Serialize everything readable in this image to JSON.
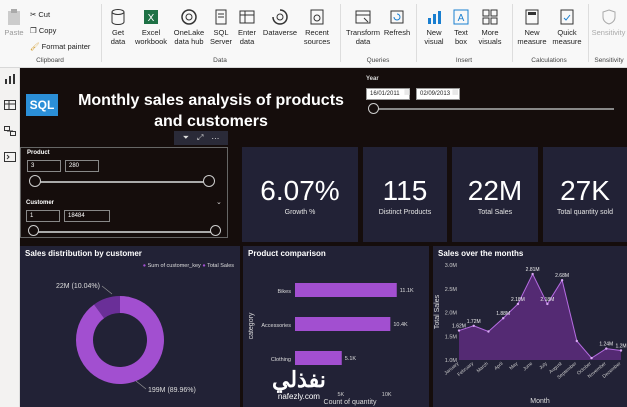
{
  "ribbon": {
    "clipboard": {
      "paste": "Paste",
      "cut": "Cut",
      "copy": "Copy",
      "format_painter": "Format painter",
      "group": "Clipboard"
    },
    "data": {
      "get_data": "Get data",
      "excel": "Excel workbook",
      "onelake": "OneLake data hub",
      "sql": "SQL Server",
      "enter": "Enter data",
      "dataverse": "Dataverse",
      "recent": "Recent sources",
      "group": "Data"
    },
    "queries": {
      "transform": "Transform data",
      "refresh": "Refresh",
      "group": "Queries"
    },
    "insert": {
      "new_visual": "New visual",
      "text_box": "Text box",
      "more_visuals": "More visuals",
      "group": "Insert"
    },
    "calculations": {
      "new_measure": "New measure",
      "quick_measure": "Quick measure",
      "group": "Calculations"
    },
    "sensitivity": {
      "label": "Sensitivity",
      "group": "Sensitivity"
    }
  },
  "report": {
    "logo": "SQL",
    "title_line1": "Monthly sales analysis of products",
    "title_line2": "and customers",
    "year_slicer": {
      "label": "Year",
      "from": "16/01/2011",
      "to": "02/09/2013"
    },
    "product_slicer": {
      "label": "Product",
      "min": "3",
      "max": "280"
    },
    "customer_slicer": {
      "label": "Customer",
      "min": "1",
      "max": "18484"
    },
    "kpis": [
      {
        "value": "6.07%",
        "label": "Growth %"
      },
      {
        "value": "115",
        "label": "Distinct Products"
      },
      {
        "value": "22M",
        "label": "Total Sales"
      },
      {
        "value": "27K",
        "label": "Total quantity sold"
      }
    ]
  },
  "chart_data": [
    {
      "type": "pie",
      "title": "Sales distribution by customer",
      "legend": [
        "Sum of customer_key",
        "Total Sales"
      ],
      "slices": [
        {
          "label": "22M (10.04%)",
          "value": 10.04
        },
        {
          "label": "199M (89.96%)",
          "value": 89.96
        }
      ]
    },
    {
      "type": "bar",
      "title": "Product comparison",
      "ylabel": "category",
      "xlabel": "Count of quantity",
      "categories": [
        "Bikes",
        "Accessories",
        "Clothing"
      ],
      "values": [
        11.1,
        10.4,
        5.1
      ],
      "value_labels": [
        "11.1K",
        "10.4K",
        "5.1K"
      ],
      "x_ticks": [
        "5K",
        "10K"
      ]
    },
    {
      "type": "area",
      "title": "Sales over the months",
      "xlabel": "Month",
      "ylabel": "Total Sales",
      "y_ticks": [
        "1.0M",
        "1.5M",
        "2.0M",
        "2.5M",
        "3.0M"
      ],
      "ylim": [
        1.0,
        3.0
      ],
      "categories": [
        "January",
        "February",
        "March",
        "April",
        "May",
        "June",
        "July",
        "August",
        "September",
        "October",
        "November",
        "December"
      ],
      "values": [
        1.62,
        1.72,
        1.6,
        1.88,
        2.18,
        2.81,
        2.18,
        2.68,
        1.4,
        1.04,
        1.24,
        1.2
      ],
      "point_labels": [
        "1.62M",
        "1.72M",
        "",
        "1.88M",
        "2.18M",
        "2.81M",
        "2.18M",
        "2.68M",
        "",
        "",
        "1.24M",
        "1.2M"
      ]
    }
  ],
  "watermark": {
    "arabic": "نفذلي",
    "latin": "nafezly.com"
  }
}
